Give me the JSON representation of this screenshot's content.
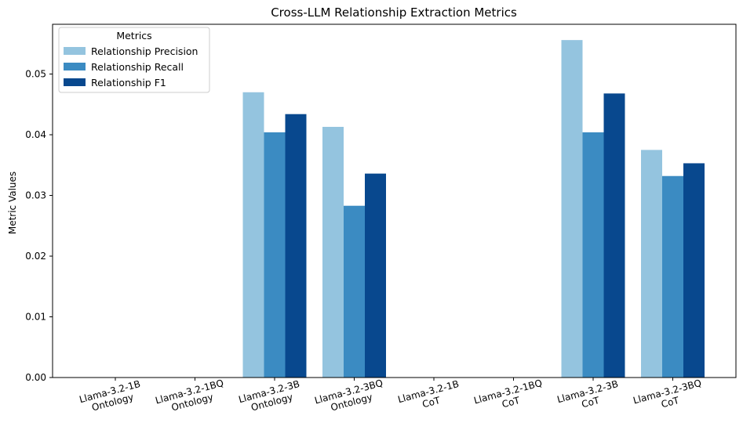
{
  "chart_data": {
    "type": "bar",
    "title": "Cross-LLM Relationship Extraction Metrics",
    "xlabel": "",
    "ylabel": "Metric Values",
    "ylim": [
      0,
      0.0582
    ],
    "yticks": [
      "0.00",
      "0.01",
      "0.02",
      "0.03",
      "0.04",
      "0.05"
    ],
    "categories": [
      [
        "Llama-3.2-1B",
        "Ontology"
      ],
      [
        "Llama-3.2-1BQ",
        "Ontology"
      ],
      [
        "Llama-3.2-3B",
        "Ontology"
      ],
      [
        "Llama-3.2-3BQ",
        "Ontology"
      ],
      [
        "Llama-3.2-1B",
        "CoT"
      ],
      [
        "Llama-3.2-1BQ",
        "CoT"
      ],
      [
        "Llama-3.2-3B",
        "CoT"
      ],
      [
        "Llama-3.2-3BQ",
        "CoT"
      ]
    ],
    "legend": {
      "title": "Metrics",
      "placement": "top-left"
    },
    "grid": false,
    "series": [
      {
        "name": "Relationship Precision",
        "color": "#94c4df",
        "values": [
          0,
          0,
          0.047,
          0.0413,
          0,
          0,
          0.0556,
          0.0375
        ]
      },
      {
        "name": "Relationship Recall",
        "color": "#3b8bc2",
        "values": [
          0,
          0,
          0.0404,
          0.0283,
          0,
          0,
          0.0404,
          0.0332
        ]
      },
      {
        "name": "Relationship F1",
        "color": "#08488e",
        "values": [
          0,
          0,
          0.0434,
          0.0336,
          0,
          0,
          0.0468,
          0.0353
        ]
      }
    ]
  }
}
